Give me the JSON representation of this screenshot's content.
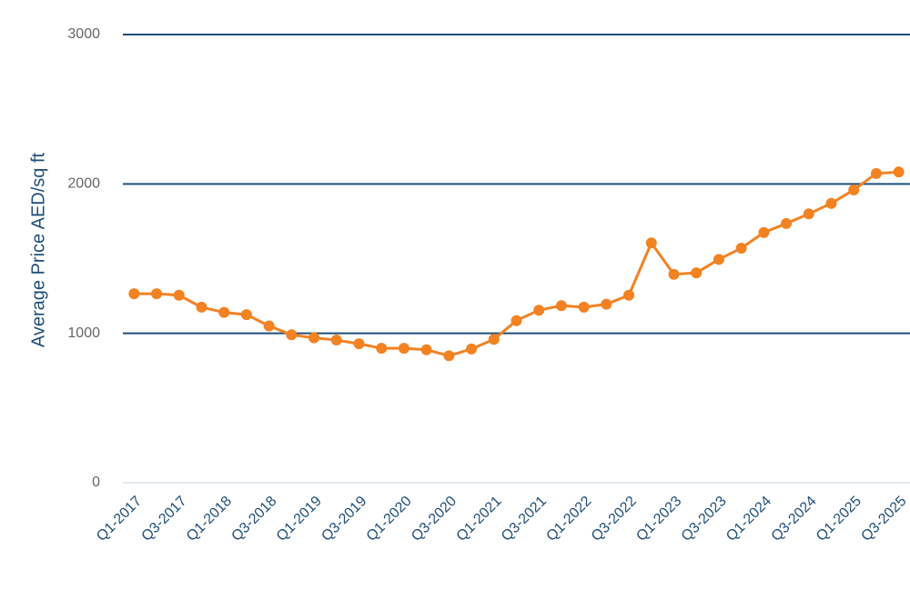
{
  "chart_data": {
    "type": "line",
    "ylabel": "Average Price AED/sq ft",
    "categories": [
      "Q1-2017",
      null,
      "Q3-2017",
      null,
      "Q1-2018",
      null,
      "Q3-2018",
      null,
      "Q1-2019",
      null,
      "Q3-2019",
      null,
      "Q1-2020",
      null,
      "Q3-2020",
      null,
      "Q1-2021",
      null,
      "Q3-2021",
      null,
      "Q1-2022",
      null,
      "Q3-2022",
      null,
      "Q1-2023",
      null,
      "Q3-2023",
      null,
      "Q1-2024",
      null,
      "Q3-2024",
      null,
      "Q1-2025",
      null,
      "Q3-2025"
    ],
    "series": [
      {
        "color": "#f28222",
        "values": [
          1265,
          1265,
          1255,
          1175,
          1140,
          1125,
          1050,
          990,
          970,
          955,
          930,
          900,
          900,
          890,
          850,
          895,
          960,
          1085,
          1155,
          1185,
          1175,
          1195,
          1255,
          1605,
          1395,
          1405,
          1495,
          1570,
          1675,
          1735,
          1800,
          1870,
          1960,
          2070,
          2080
        ]
      }
    ],
    "ylim": [
      0,
      3000
    ],
    "yticks": [
      0,
      1000,
      2000,
      3000
    ],
    "grid": true
  }
}
